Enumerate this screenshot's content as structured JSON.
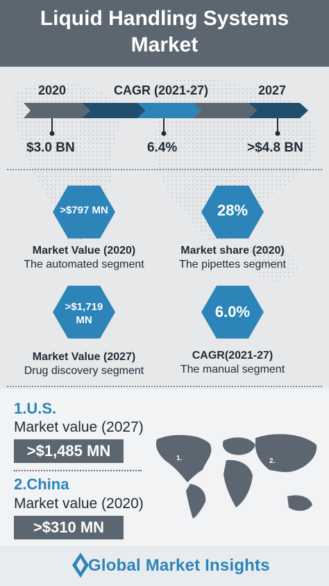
{
  "header": {
    "title_line1": "Liquid Handling Systems",
    "title_line2": "Market"
  },
  "timeline": {
    "label_2020": "2020",
    "label_cagr": "CAGR (2021-27)",
    "label_2027": "2027",
    "value_2020": "$3.0 BN",
    "value_cagr": "6.4%",
    "value_2027": ">$4.8 BN"
  },
  "stats": [
    {
      "value": ">$797 MN",
      "title": "Market Value (2020)",
      "subtitle": "The automated segment"
    },
    {
      "value": "28%",
      "title": "Market share (2020)",
      "subtitle": "The pipettes segment"
    },
    {
      "value_line1": ">$1,719",
      "value_line2": "MN",
      "title": "Market Value (2027)",
      "subtitle": "Drug discovery segment"
    },
    {
      "value": "6.0%",
      "title": "CAGR(2021-27)",
      "subtitle": "The manual segment"
    }
  ],
  "regions": [
    {
      "name": "1.U.S.",
      "label": "Market value (2027)",
      "value": ">$1,485 MN",
      "marker": "1."
    },
    {
      "name": "2.China",
      "label": "Market value (2020)",
      "value": ">$310 MN",
      "marker": "2."
    }
  ],
  "footer": {
    "brand": "Global Market Insights"
  },
  "colors": {
    "dark_gray": "#5b6670",
    "blue": "#2c84b8",
    "dark_blue": "#1f4e6e",
    "text": "#1f2a35"
  }
}
